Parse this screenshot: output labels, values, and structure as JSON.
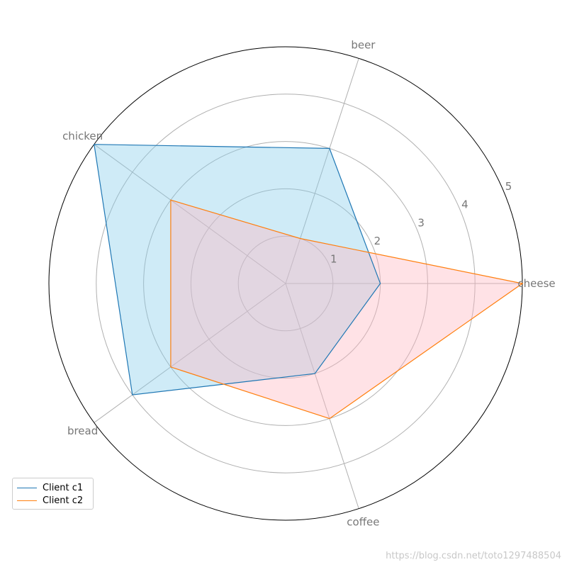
{
  "chart_data": {
    "type": "radar",
    "categories": [
      "cheese",
      "beer",
      "chicken",
      "bread",
      "coffee"
    ],
    "series": [
      {
        "name": "Client c1",
        "values": [
          2,
          3,
          5,
          4,
          2
        ],
        "line_color": "#1f77b4",
        "fill_color": "#87ceeb"
      },
      {
        "name": "Client c2",
        "values": [
          5,
          1,
          3,
          3,
          3
        ],
        "line_color": "#ff7f0e",
        "fill_color": "#ffb6c1"
      }
    ],
    "radial_ticks": [
      "1",
      "2",
      "3",
      "4",
      "5"
    ],
    "rlim": [
      0,
      5
    ],
    "grid": true,
    "legend_position": "lower-left"
  },
  "watermark": "https://blog.csdn.net/toto1297488504"
}
